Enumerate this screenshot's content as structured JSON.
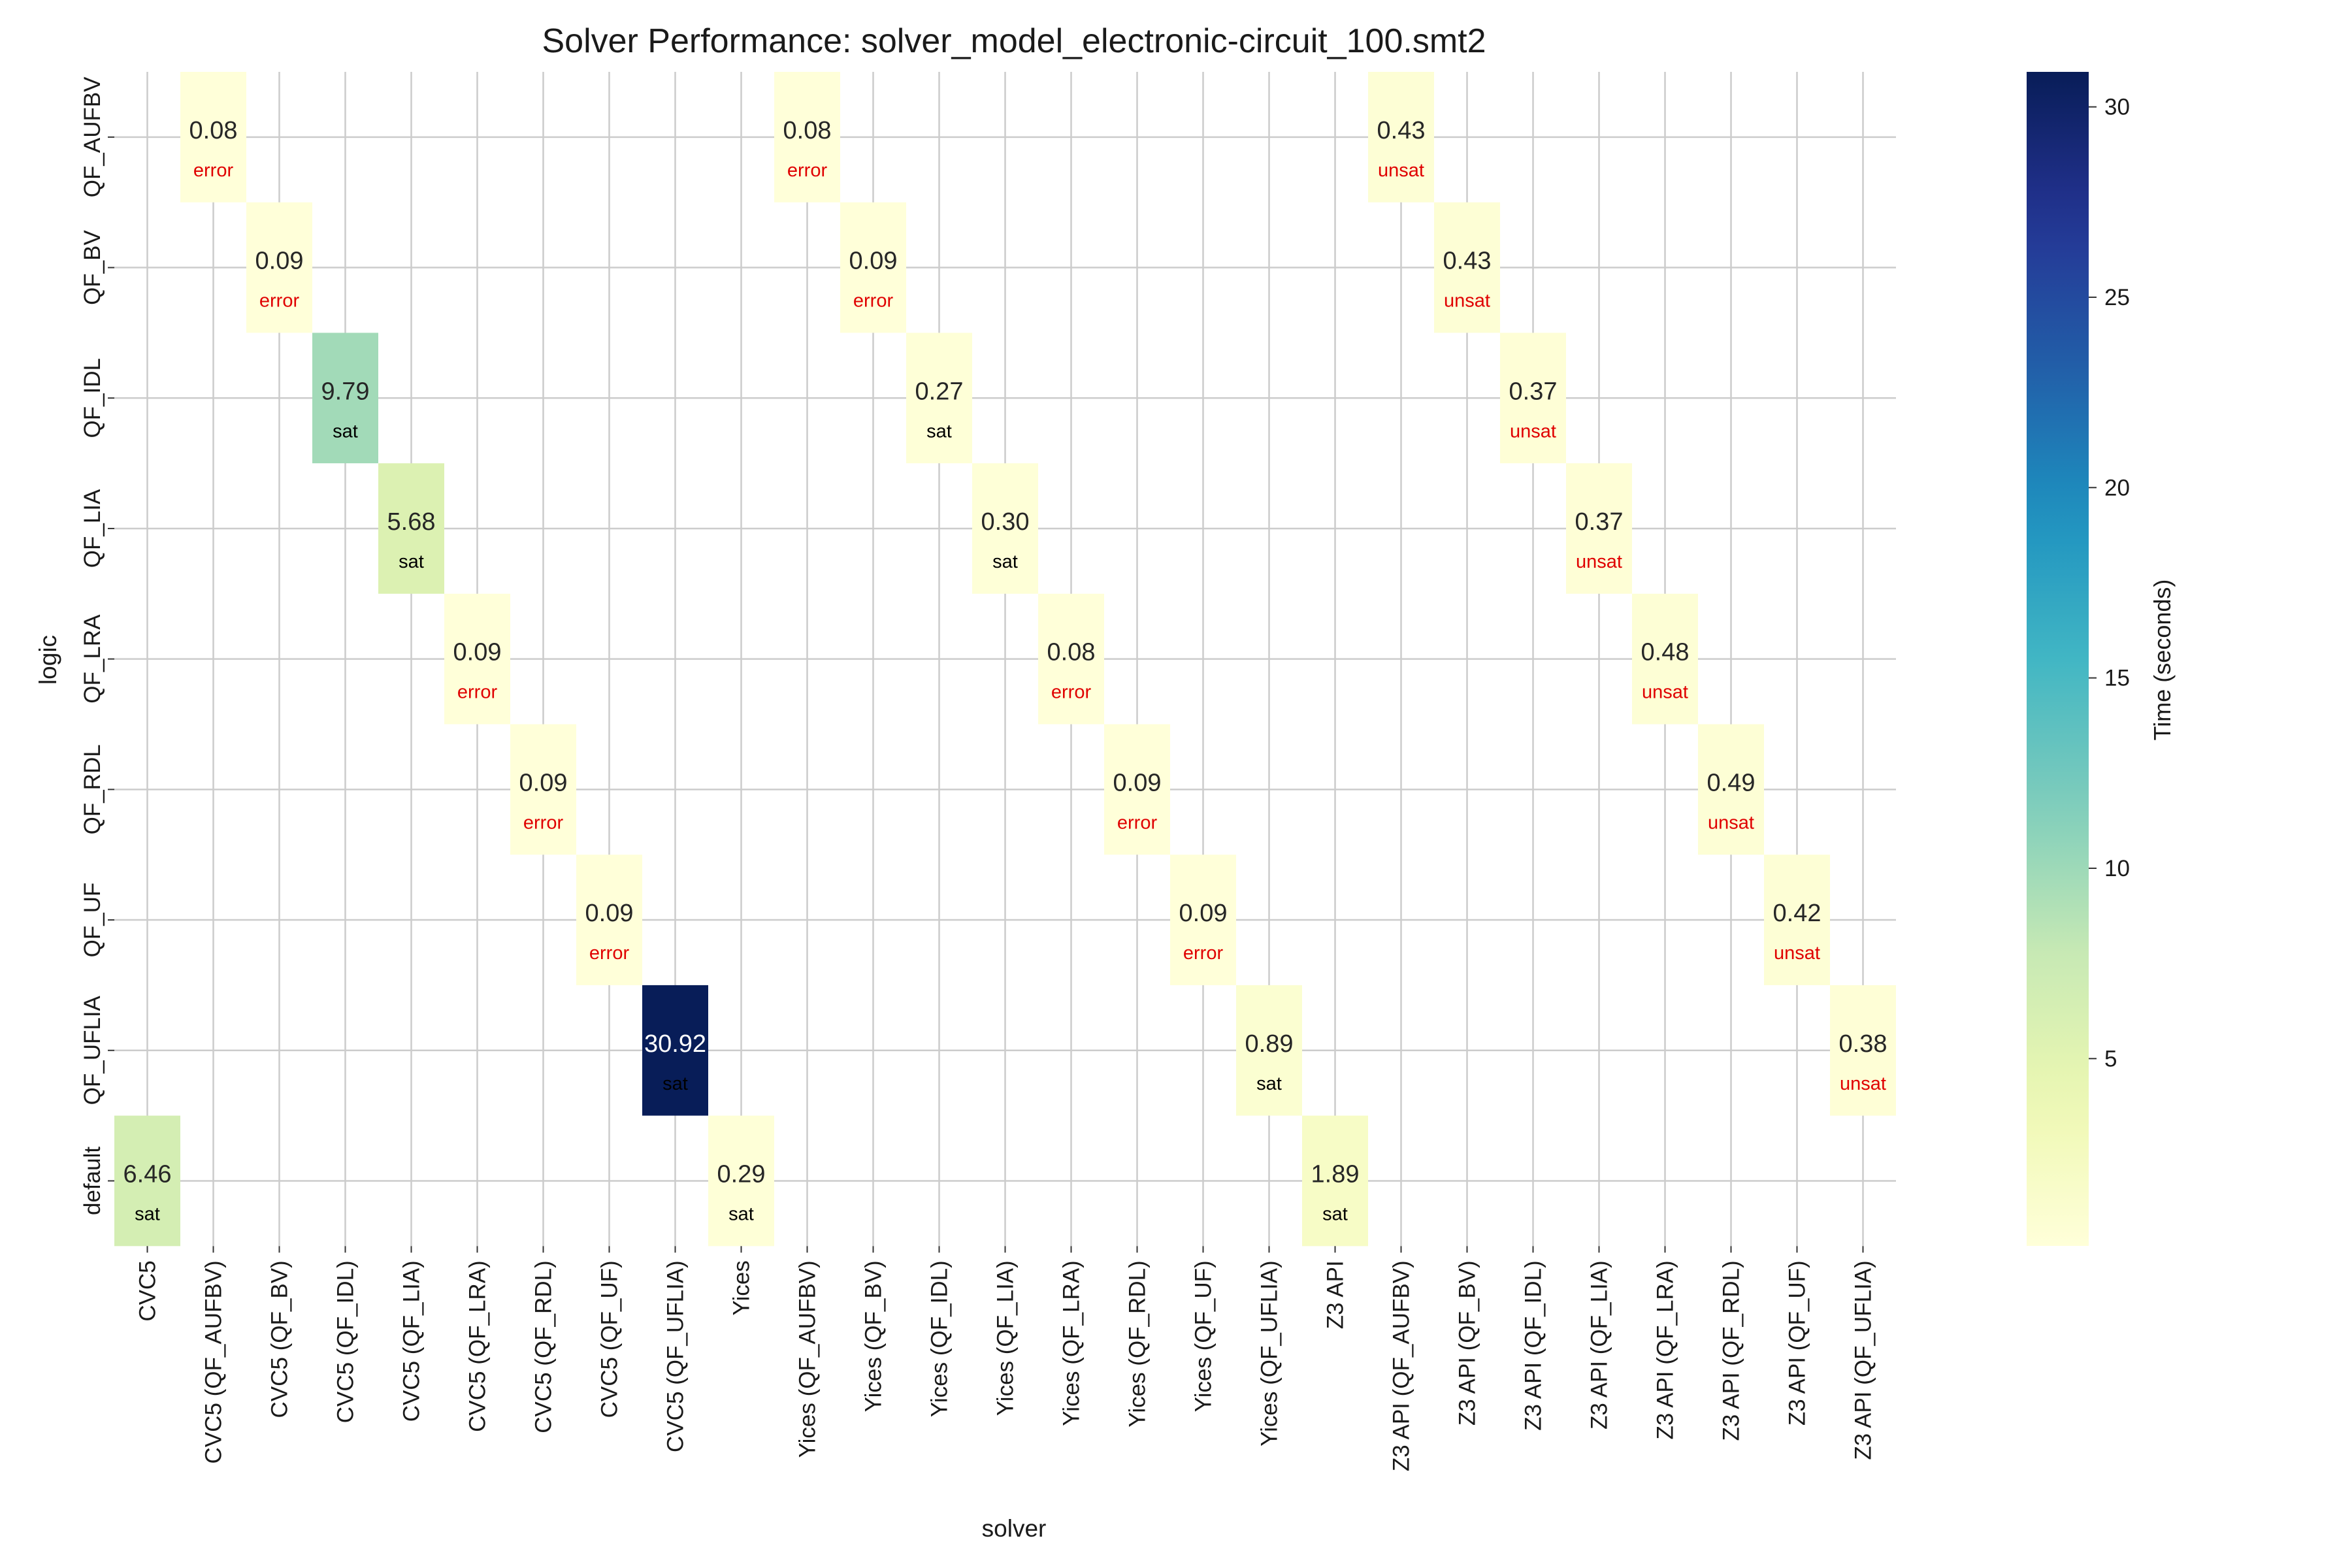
{
  "chart_data": {
    "type": "heatmap",
    "title": "Solver Performance: solver_model_electronic-circuit_100.smt2",
    "xlabel": "solver",
    "ylabel": "logic",
    "colorbar_label": "Time (seconds)",
    "colorbar_ticks": [
      5,
      10,
      15,
      20,
      25,
      30
    ],
    "value_range": [
      0.08,
      30.92
    ],
    "colormap": "YlGnBu",
    "grid": true,
    "x_categories": [
      "CVC5",
      "CVC5 (QF_AUFBV)",
      "CVC5 (QF_BV)",
      "CVC5 (QF_IDL)",
      "CVC5 (QF_LIA)",
      "CVC5 (QF_LRA)",
      "CVC5 (QF_RDL)",
      "CVC5 (QF_UF)",
      "CVC5 (QF_UFLIA)",
      "Yices",
      "Yices (QF_AUFBV)",
      "Yices (QF_BV)",
      "Yices (QF_IDL)",
      "Yices (QF_LIA)",
      "Yices (QF_LRA)",
      "Yices (QF_RDL)",
      "Yices (QF_UF)",
      "Yices (QF_UFLIA)",
      "Z3 API",
      "Z3 API (QF_AUFBV)",
      "Z3 API (QF_BV)",
      "Z3 API (QF_IDL)",
      "Z3 API (QF_LIA)",
      "Z3 API (QF_LRA)",
      "Z3 API (QF_RDL)",
      "Z3 API (QF_UF)",
      "Z3 API (QF_UFLIA)"
    ],
    "y_categories": [
      "QF_AUFBV",
      "QF_BV",
      "QF_IDL",
      "QF_LIA",
      "QF_LRA",
      "QF_RDL",
      "QF_UF",
      "QF_UFLIA",
      "default"
    ],
    "cells": [
      {
        "x": "CVC5 (QF_AUFBV)",
        "y": "QF_AUFBV",
        "value": 0.08,
        "value_label": "0.08",
        "status": "error"
      },
      {
        "x": "Yices (QF_AUFBV)",
        "y": "QF_AUFBV",
        "value": 0.08,
        "value_label": "0.08",
        "status": "error"
      },
      {
        "x": "Z3 API (QF_AUFBV)",
        "y": "QF_AUFBV",
        "value": 0.43,
        "value_label": "0.43",
        "status": "unsat"
      },
      {
        "x": "CVC5 (QF_BV)",
        "y": "QF_BV",
        "value": 0.09,
        "value_label": "0.09",
        "status": "error"
      },
      {
        "x": "Yices (QF_BV)",
        "y": "QF_BV",
        "value": 0.09,
        "value_label": "0.09",
        "status": "error"
      },
      {
        "x": "Z3 API (QF_BV)",
        "y": "QF_BV",
        "value": 0.43,
        "value_label": "0.43",
        "status": "unsat"
      },
      {
        "x": "CVC5 (QF_IDL)",
        "y": "QF_IDL",
        "value": 9.79,
        "value_label": "9.79",
        "status": "sat"
      },
      {
        "x": "Yices (QF_IDL)",
        "y": "QF_IDL",
        "value": 0.27,
        "value_label": "0.27",
        "status": "sat"
      },
      {
        "x": "Z3 API (QF_IDL)",
        "y": "QF_IDL",
        "value": 0.37,
        "value_label": "0.37",
        "status": "unsat"
      },
      {
        "x": "CVC5 (QF_LIA)",
        "y": "QF_LIA",
        "value": 5.68,
        "value_label": "5.68",
        "status": "sat"
      },
      {
        "x": "Yices (QF_LIA)",
        "y": "QF_LIA",
        "value": 0.3,
        "value_label": "0.30",
        "status": "sat"
      },
      {
        "x": "Z3 API (QF_LIA)",
        "y": "QF_LIA",
        "value": 0.37,
        "value_label": "0.37",
        "status": "unsat"
      },
      {
        "x": "CVC5 (QF_LRA)",
        "y": "QF_LRA",
        "value": 0.09,
        "value_label": "0.09",
        "status": "error"
      },
      {
        "x": "Yices (QF_LRA)",
        "y": "QF_LRA",
        "value": 0.08,
        "value_label": "0.08",
        "status": "error"
      },
      {
        "x": "Z3 API (QF_LRA)",
        "y": "QF_LRA",
        "value": 0.48,
        "value_label": "0.48",
        "status": "unsat"
      },
      {
        "x": "CVC5 (QF_RDL)",
        "y": "QF_RDL",
        "value": 0.09,
        "value_label": "0.09",
        "status": "error"
      },
      {
        "x": "Yices (QF_RDL)",
        "y": "QF_RDL",
        "value": 0.09,
        "value_label": "0.09",
        "status": "error"
      },
      {
        "x": "Z3 API (QF_RDL)",
        "y": "QF_RDL",
        "value": 0.49,
        "value_label": "0.49",
        "status": "unsat"
      },
      {
        "x": "CVC5 (QF_UF)",
        "y": "QF_UF",
        "value": 0.09,
        "value_label": "0.09",
        "status": "error"
      },
      {
        "x": "Yices (QF_UF)",
        "y": "QF_UF",
        "value": 0.09,
        "value_label": "0.09",
        "status": "error"
      },
      {
        "x": "Z3 API (QF_UF)",
        "y": "QF_UF",
        "value": 0.42,
        "value_label": "0.42",
        "status": "unsat"
      },
      {
        "x": "CVC5 (QF_UFLIA)",
        "y": "QF_UFLIA",
        "value": 30.92,
        "value_label": "30.92",
        "status": "sat"
      },
      {
        "x": "Yices (QF_UFLIA)",
        "y": "QF_UFLIA",
        "value": 0.89,
        "value_label": "0.89",
        "status": "sat"
      },
      {
        "x": "Z3 API (QF_UFLIA)",
        "y": "QF_UFLIA",
        "value": 0.38,
        "value_label": "0.38",
        "status": "unsat"
      },
      {
        "x": "CVC5",
        "y": "default",
        "value": 6.46,
        "value_label": "6.46",
        "status": "sat"
      },
      {
        "x": "Yices",
        "y": "default",
        "value": 0.29,
        "value_label": "0.29",
        "status": "sat"
      },
      {
        "x": "Z3 API",
        "y": "default",
        "value": 1.89,
        "value_label": "1.89",
        "status": "sat"
      }
    ]
  },
  "colors": {
    "error_text": "#e00000",
    "unsat_text": "#e00000",
    "sat_text": "#000000",
    "grid": "#cccccc"
  }
}
